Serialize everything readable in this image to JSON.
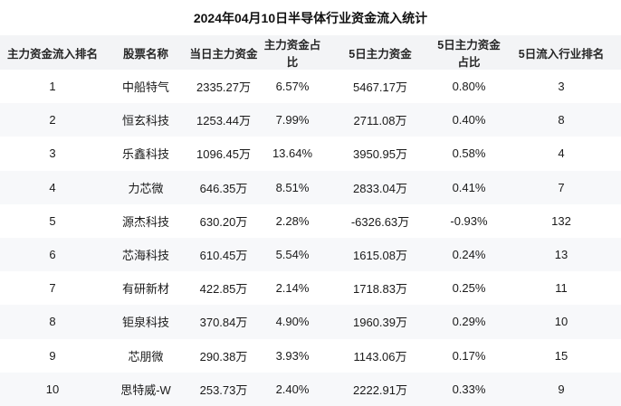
{
  "chart_data": {
    "type": "table",
    "title": "2024年04月10日半导体行业资金流入统计",
    "columns": [
      "主力资金流入排名",
      "股票名称",
      "当日主力资金",
      "主力资金占比",
      "5日主力资金",
      "5日主力资金占比",
      "5日流入行业排名"
    ],
    "rows": [
      [
        "1",
        "中船特气",
        "2335.27万",
        "6.57%",
        "5467.17万",
        "0.80%",
        "3"
      ],
      [
        "2",
        "恒玄科技",
        "1253.44万",
        "7.99%",
        "2711.08万",
        "0.40%",
        "8"
      ],
      [
        "3",
        "乐鑫科技",
        "1096.45万",
        "13.64%",
        "3950.95万",
        "0.58%",
        "4"
      ],
      [
        "4",
        "力芯微",
        "646.35万",
        "8.51%",
        "2833.04万",
        "0.41%",
        "7"
      ],
      [
        "5",
        "源杰科技",
        "630.20万",
        "2.28%",
        "-6326.63万",
        "-0.93%",
        "132"
      ],
      [
        "6",
        "芯海科技",
        "610.45万",
        "5.54%",
        "1615.08万",
        "0.24%",
        "13"
      ],
      [
        "7",
        "有研新材",
        "422.85万",
        "2.14%",
        "1718.83万",
        "0.25%",
        "11"
      ],
      [
        "8",
        "钜泉科技",
        "370.84万",
        "4.90%",
        "1960.39万",
        "0.29%",
        "10"
      ],
      [
        "9",
        "芯朋微",
        "290.38万",
        "3.93%",
        "1143.06万",
        "0.17%",
        "15"
      ],
      [
        "10",
        "思特威-W",
        "253.73万",
        "2.40%",
        "2222.91万",
        "0.33%",
        "9"
      ]
    ],
    "layout_hints": {
      "header_row": true,
      "zebra_striping": "even-rows-shaded",
      "text_align": "center",
      "grid_lines": false
    }
  },
  "colors": {
    "title_text": "#111111",
    "header_bg": "#f3f4f6",
    "header_text": "#262626",
    "row_alt_bg": "#f7f8fa",
    "cell_text": "#1a1a1a",
    "page_bg": "#ffffff"
  }
}
